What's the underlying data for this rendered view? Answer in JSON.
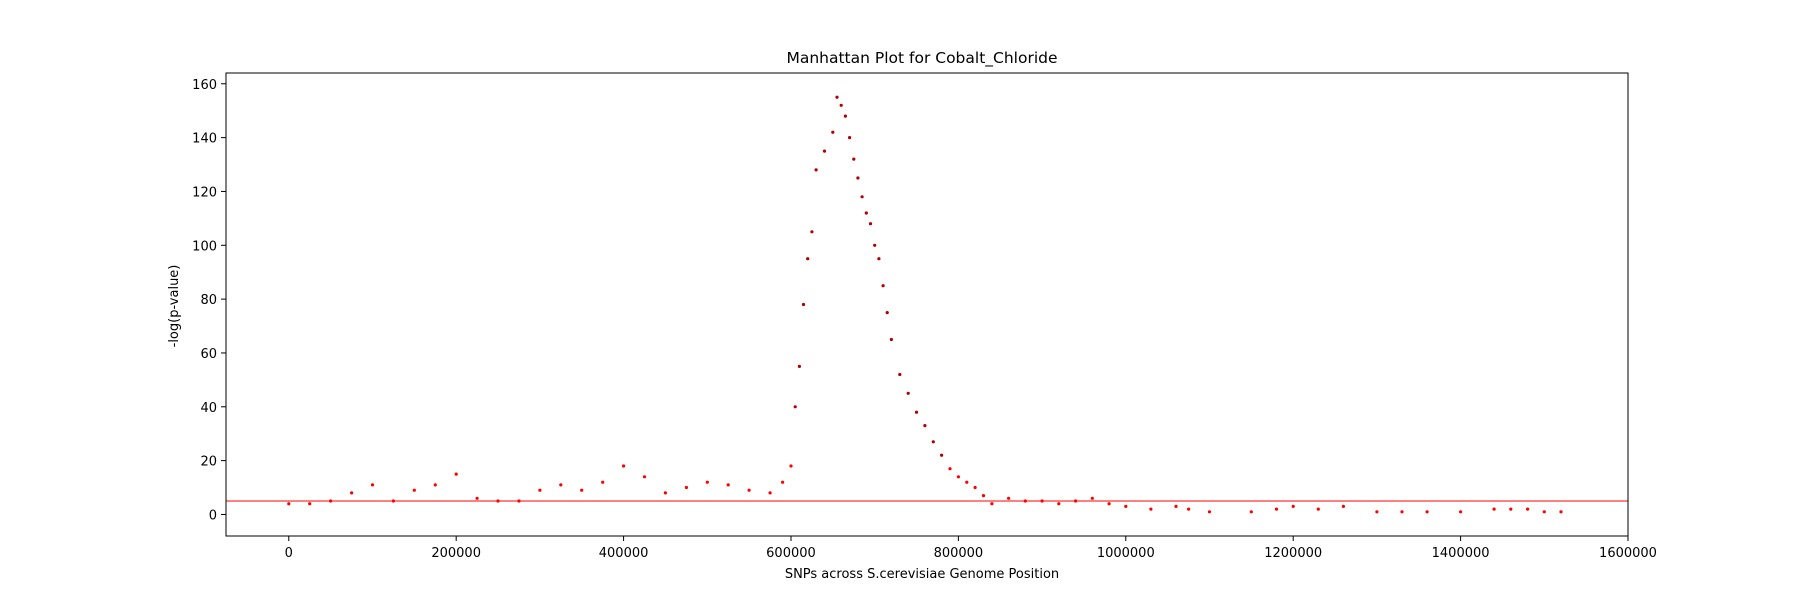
{
  "chart_data": {
    "type": "scatter",
    "title": "Manhattan Plot for Cobalt_Chloride",
    "xlabel": "SNPs across S.cerevisiae Genome Position",
    "ylabel": "-log(p-value)",
    "xlim": [
      -75000,
      1600000
    ],
    "ylim": [
      -8,
      164
    ],
    "xticks": [
      0,
      200000,
      400000,
      600000,
      800000,
      1000000,
      1200000,
      1400000,
      1600000
    ],
    "xtick_labels": [
      "0",
      "200000",
      "400000",
      "600000",
      "800000",
      "1000000",
      "1200000",
      "1400000",
      "1600000"
    ],
    "yticks": [
      0,
      20,
      40,
      60,
      80,
      100,
      120,
      140,
      160
    ],
    "ytick_labels": [
      "0",
      "20",
      "40",
      "60",
      "80",
      "100",
      "120",
      "140",
      "160"
    ],
    "threshold": 5,
    "grid": false,
    "legend": "none",
    "colors": {
      "points": "#ff0000",
      "points_dense": "#b00000",
      "threshold_line": "#ff0000",
      "axes": "#000000"
    },
    "series": [
      {
        "x": [
          0,
          25000,
          50000,
          75000,
          100000,
          125000,
          150000,
          175000,
          200000,
          225000,
          250000,
          275000,
          300000,
          325000,
          350000,
          375000,
          400000,
          425000,
          450000,
          475000,
          500000,
          525000,
          550000,
          575000,
          590000,
          600000,
          605000,
          610000,
          615000,
          620000,
          625000,
          630000,
          640000,
          650000,
          655000,
          660000,
          665000,
          670000,
          675000,
          680000,
          685000,
          690000,
          695000,
          700000,
          705000,
          710000,
          715000,
          720000,
          730000,
          740000,
          750000,
          760000,
          770000,
          780000,
          790000,
          800000,
          810000,
          820000,
          830000,
          840000,
          860000,
          880000,
          900000,
          920000,
          940000,
          960000,
          980000,
          1000000,
          1030000,
          1060000,
          1075000,
          1100000,
          1150000,
          1180000,
          1200000,
          1230000,
          1260000,
          1300000,
          1330000,
          1360000,
          1400000,
          1440000,
          1460000,
          1480000,
          1500000,
          1520000
        ],
        "y": [
          4,
          4,
          5,
          8,
          11,
          5,
          9,
          11,
          15,
          6,
          5,
          5,
          9,
          11,
          9,
          12,
          18,
          14,
          8,
          10,
          12,
          11,
          9,
          8,
          12,
          18,
          40,
          55,
          78,
          95,
          105,
          128,
          135,
          142,
          155,
          152,
          148,
          140,
          132,
          125,
          118,
          112,
          108,
          100,
          95,
          85,
          75,
          65,
          52,
          45,
          38,
          33,
          27,
          22,
          17,
          14,
          12,
          10,
          7,
          4,
          6,
          5,
          5,
          4,
          5,
          6,
          4,
          3,
          2,
          3,
          2,
          1,
          1,
          2,
          3,
          2,
          3,
          1,
          1,
          1,
          1,
          2,
          2,
          2,
          1,
          1
        ]
      }
    ]
  }
}
